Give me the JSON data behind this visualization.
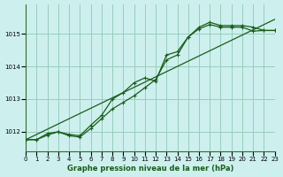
{
  "title": "Graphe pression niveau de la mer (hPa)",
  "bg_color": "#cdf0ee",
  "grid_color": "#99ccbb",
  "line_color": "#1a5c1a",
  "xlim": [
    0,
    23
  ],
  "ylim": [
    1011.4,
    1015.9
  ],
  "yticks": [
    1012,
    1013,
    1014,
    1015
  ],
  "xticks": [
    0,
    1,
    2,
    3,
    4,
    5,
    6,
    7,
    8,
    9,
    10,
    11,
    12,
    13,
    14,
    15,
    16,
    17,
    18,
    19,
    20,
    21,
    22,
    23
  ],
  "straight": [
    1011.76,
    1011.92,
    1012.08,
    1012.24,
    1012.4,
    1012.56,
    1012.72,
    1012.88,
    1013.04,
    1013.2,
    1013.36,
    1013.52,
    1013.68,
    1013.84,
    1014.0,
    1014.16,
    1014.32,
    1014.48,
    1014.64,
    1014.8,
    1014.96,
    1015.12,
    1015.28,
    1015.44
  ],
  "series1": [
    1011.76,
    1011.76,
    1011.95,
    1012.0,
    1011.92,
    1011.88,
    1012.2,
    1012.5,
    1013.0,
    1013.2,
    1013.5,
    1013.65,
    1013.55,
    1014.35,
    1014.45,
    1014.9,
    1015.2,
    1015.35,
    1015.25,
    1015.25,
    1015.25,
    1015.2,
    1015.1,
    1015.1
  ],
  "series2": [
    1011.76,
    1011.76,
    1011.9,
    1012.0,
    1011.88,
    1011.84,
    1012.1,
    1012.4,
    1012.7,
    1012.9,
    1013.1,
    1013.35,
    1013.6,
    1014.2,
    1014.35,
    1014.9,
    1015.15,
    1015.28,
    1015.2,
    1015.2,
    1015.2,
    1015.08,
    1015.1,
    1015.1
  ]
}
